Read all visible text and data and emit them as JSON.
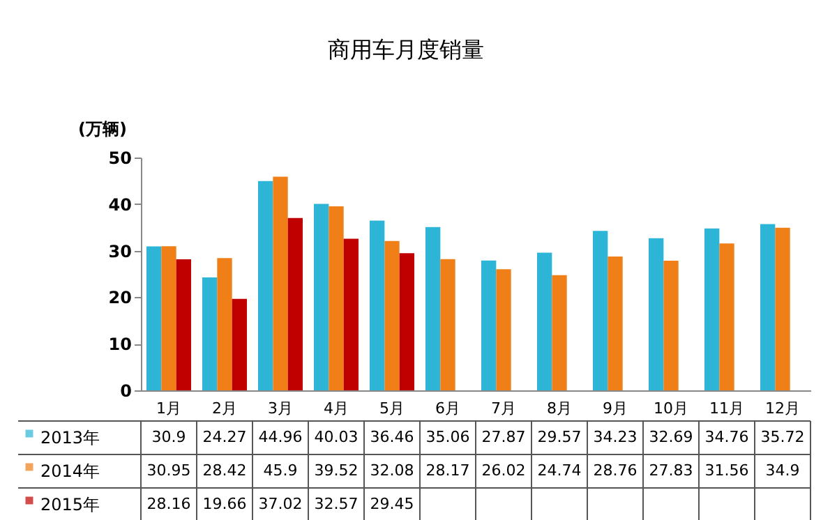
{
  "chart_data": {
    "type": "bar",
    "title": "商用车月度销量",
    "ylabel": "(万辆)",
    "categories": [
      "1月",
      "2月",
      "3月",
      "4月",
      "5月",
      "6月",
      "7月",
      "8月",
      "9月",
      "10月",
      "11月",
      "12月"
    ],
    "series": [
      {
        "name": "2013年",
        "color": "#2cb5d6",
        "values": [
          30.9,
          24.27,
          44.96,
          40.03,
          36.46,
          35.06,
          27.87,
          29.57,
          34.23,
          32.69,
          34.76,
          35.72
        ]
      },
      {
        "name": "2014年",
        "color": "#f07f18",
        "values": [
          30.95,
          28.42,
          45.9,
          39.52,
          32.08,
          28.17,
          26.02,
          24.74,
          28.76,
          27.83,
          31.56,
          34.9
        ]
      },
      {
        "name": "2015年",
        "color": "#c00000",
        "values": [
          28.16,
          19.66,
          37.02,
          32.57,
          29.45,
          null,
          null,
          null,
          null,
          null,
          null,
          null
        ]
      }
    ],
    "ylim": [
      0,
      50
    ],
    "yticks": [
      0,
      10,
      20,
      30,
      40,
      50
    ],
    "grid": false,
    "legend": "bottom",
    "data_labels": true
  }
}
